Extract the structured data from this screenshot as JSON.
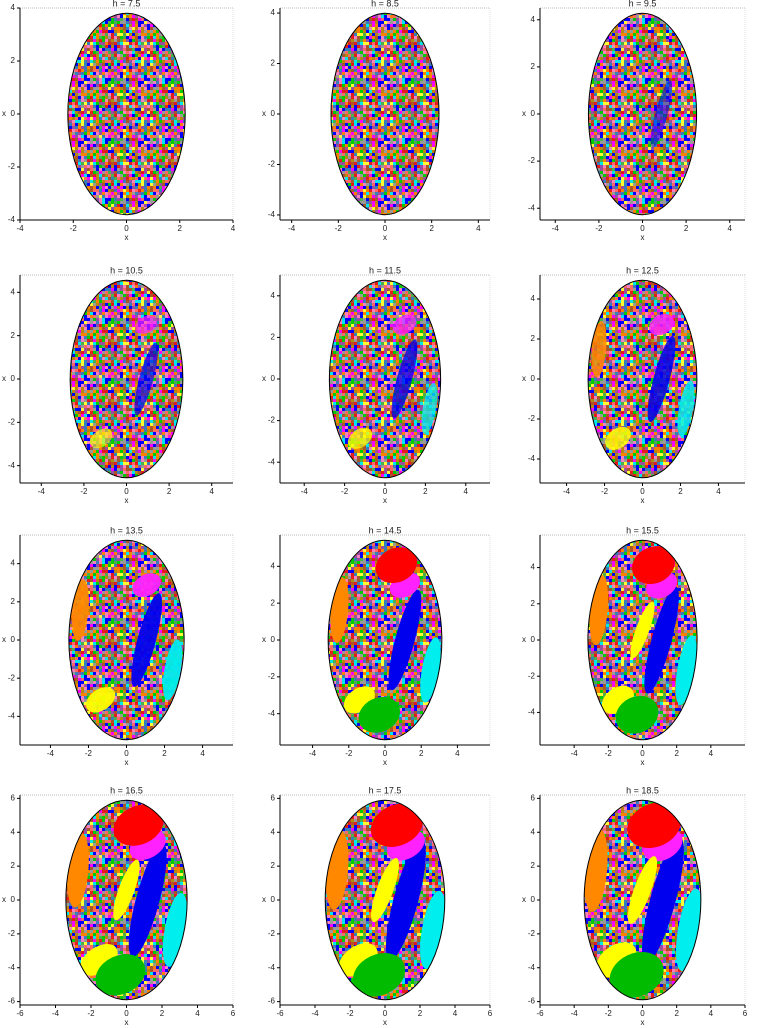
{
  "chart_data": [
    {
      "type": "basin",
      "title": "h = 7.5",
      "xlabel": "x",
      "ylabel": "x",
      "xlim": [
        -4,
        4
      ],
      "ylim": [
        -4,
        4
      ],
      "xticks": [
        -4,
        -2,
        0,
        2,
        4
      ],
      "yticks": [
        -4,
        -2,
        0,
        2,
        4
      ]
    },
    {
      "type": "basin",
      "title": "h = 8.5",
      "xlabel": "x",
      "ylabel": "x",
      "xlim": [
        -4.5,
        4.5
      ],
      "ylim": [
        -4.2,
        4.2
      ],
      "xticks": [
        -4,
        -2,
        0,
        2,
        4
      ],
      "yticks": [
        -4,
        -2,
        0,
        2,
        4
      ]
    },
    {
      "type": "basin",
      "title": "h = 9.5",
      "xlabel": "x",
      "ylabel": "x",
      "xlim": [
        -4.7,
        4.7
      ],
      "ylim": [
        -4.5,
        4.5
      ],
      "xticks": [
        -4,
        -2,
        0,
        2,
        4
      ],
      "yticks": [
        -4,
        -2,
        0,
        2,
        4
      ]
    },
    {
      "type": "basin",
      "title": "h = 10.5",
      "xlabel": "x",
      "ylabel": "x",
      "xlim": [
        -5,
        5
      ],
      "ylim": [
        -4.8,
        4.8
      ],
      "xticks": [
        -4,
        -2,
        0,
        2,
        4
      ],
      "yticks": [
        -4,
        -2,
        0,
        2,
        4
      ]
    },
    {
      "type": "basin",
      "title": "h = 11.5",
      "xlabel": "x",
      "ylabel": "x",
      "xlim": [
        -5.2,
        5.2
      ],
      "ylim": [
        -5,
        5
      ],
      "xticks": [
        -4,
        -2,
        0,
        2,
        4
      ],
      "yticks": [
        -4,
        -2,
        0,
        2,
        4
      ]
    },
    {
      "type": "basin",
      "title": "h = 12.5",
      "xlabel": "x",
      "ylabel": "x",
      "xlim": [
        -5.4,
        5.4
      ],
      "ylim": [
        -5.2,
        5.2
      ],
      "xticks": [
        -4,
        -2,
        0,
        2,
        4
      ],
      "yticks": [
        -4,
        -2,
        0,
        2,
        4
      ]
    },
    {
      "type": "basin",
      "title": "h = 13.5",
      "xlabel": "x",
      "ylabel": "x",
      "xlim": [
        -5.6,
        5.6
      ],
      "ylim": [
        -5.5,
        5.5
      ],
      "xticks": [
        -4,
        -2,
        0,
        2,
        4
      ],
      "yticks": [
        -4,
        -2,
        0,
        2,
        4
      ]
    },
    {
      "type": "basin",
      "title": "h = 14.5",
      "xlabel": "x",
      "ylabel": "x",
      "xlim": [
        -5.8,
        5.8
      ],
      "ylim": [
        -5.7,
        5.7
      ],
      "xticks": [
        -4,
        -2,
        0,
        2,
        4
      ],
      "yticks": [
        -4,
        -2,
        0,
        2,
        4
      ]
    },
    {
      "type": "basin",
      "title": "h = 15.5",
      "xlabel": "x",
      "ylabel": "x",
      "xlim": [
        -6,
        6
      ],
      "ylim": [
        -5.8,
        5.8
      ],
      "xticks": [
        -4,
        -2,
        0,
        2,
        4
      ],
      "yticks": [
        -4,
        -2,
        0,
        2,
        4
      ]
    },
    {
      "type": "basin",
      "title": "h = 16.5",
      "xlabel": "x",
      "ylabel": "x",
      "xlim": [
        -6,
        6
      ],
      "ylim": [
        -6.2,
        6.2
      ],
      "xticks": [
        -6,
        -4,
        -2,
        0,
        2,
        4,
        6
      ],
      "yticks": [
        -6,
        -4,
        -2,
        0,
        2,
        4,
        6
      ]
    },
    {
      "type": "basin",
      "title": "h = 17.5",
      "xlabel": "x",
      "ylabel": "x",
      "xlim": [
        -6,
        6
      ],
      "ylim": [
        -6.2,
        6.2
      ],
      "xticks": [
        -6,
        -4,
        -2,
        0,
        2,
        4,
        6
      ],
      "yticks": [
        -6,
        -4,
        -2,
        0,
        2,
        4,
        6
      ]
    },
    {
      "type": "basin",
      "title": "h = 18.5",
      "xlabel": "x",
      "ylabel": "x",
      "xlim": [
        -6,
        6
      ],
      "ylim": [
        -6.2,
        6.2
      ],
      "xticks": [
        -6,
        -4,
        -2,
        0,
        2,
        4,
        6
      ],
      "yticks": [
        -6,
        -4,
        -2,
        0,
        2,
        4,
        6
      ]
    }
  ]
}
